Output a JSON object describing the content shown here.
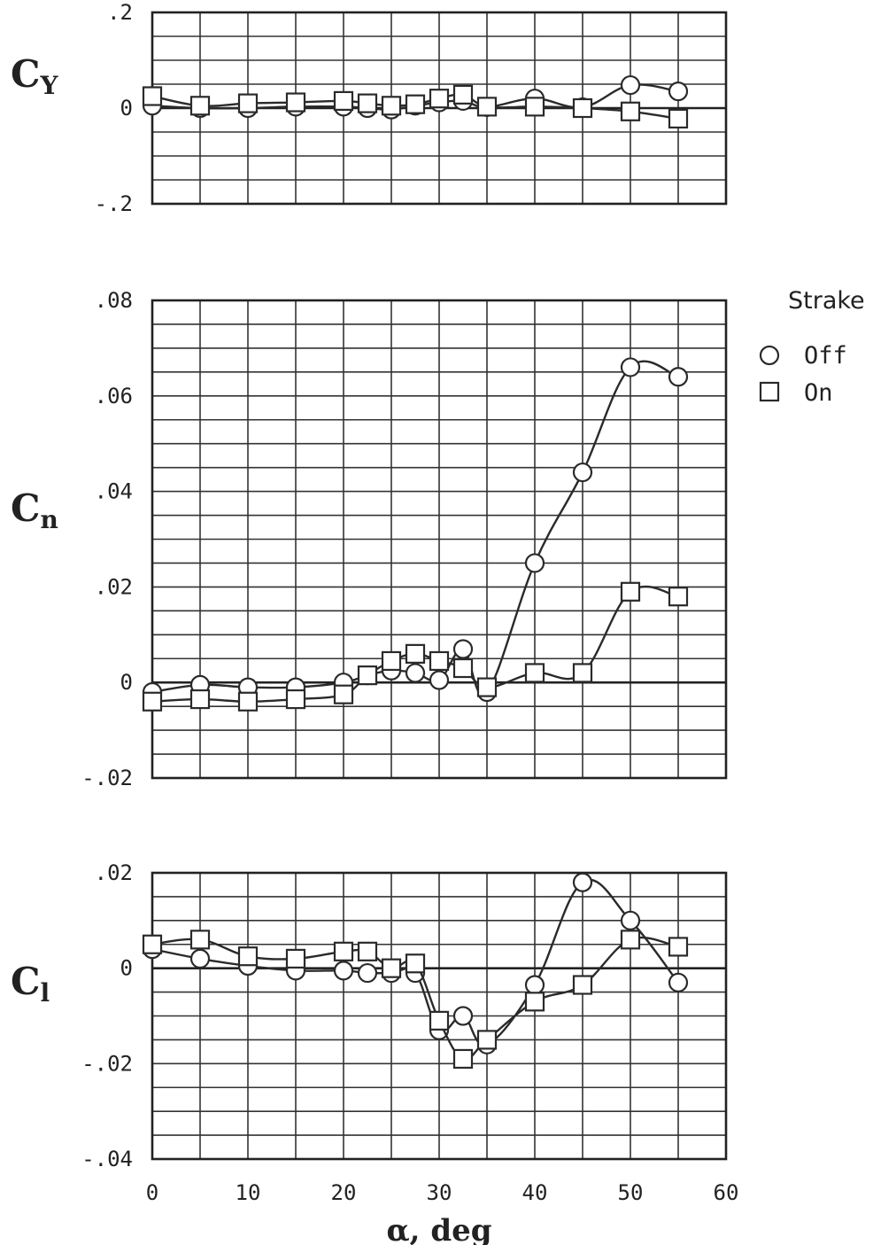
{
  "chart_data": [
    {
      "type": "line",
      "ylabel": {
        "main": "C",
        "sub": "Y"
      },
      "xlabel": "",
      "xlim": [
        0,
        60
      ],
      "xticks": [
        0,
        10,
        20,
        30,
        40,
        50,
        60
      ],
      "ylim": [
        -0.2,
        0.2
      ],
      "yticks": [
        -0.2,
        0,
        0.2
      ],
      "ytick_labels": [
        "-.2",
        "0",
        ".2"
      ],
      "grid": true,
      "series": [
        {
          "name": "Off",
          "marker": "circle",
          "x": [
            0,
            5,
            10,
            15,
            20,
            22.5,
            25,
            27.5,
            30,
            32.5,
            35,
            40,
            45,
            50,
            55
          ],
          "y": [
            0.005,
            0.0,
            0.0,
            0.003,
            0.003,
            0.0,
            -0.003,
            0.005,
            0.012,
            0.015,
            0.002,
            0.02,
            0.002,
            0.048,
            0.035
          ]
        },
        {
          "name": "On",
          "marker": "square",
          "x": [
            0,
            5,
            10,
            15,
            20,
            22.5,
            25,
            27.5,
            30,
            32.5,
            35,
            40,
            45,
            50,
            55
          ],
          "y": [
            0.025,
            0.005,
            0.01,
            0.012,
            0.015,
            0.01,
            0.005,
            0.008,
            0.02,
            0.028,
            0.003,
            0.003,
            0.0,
            -0.007,
            -0.022
          ]
        }
      ]
    },
    {
      "type": "line",
      "ylabel": {
        "main": "C",
        "sub": "n"
      },
      "xlabel": "",
      "xlim": [
        0,
        60
      ],
      "xticks": [
        0,
        10,
        20,
        30,
        40,
        50,
        60
      ],
      "ylim": [
        -0.02,
        0.08
      ],
      "yticks": [
        -0.02,
        0,
        0.02,
        0.04,
        0.06,
        0.08
      ],
      "ytick_labels": [
        "-.02",
        "0",
        ".02",
        ".04",
        ".06",
        ".08"
      ],
      "grid": true,
      "series": [
        {
          "name": "Off",
          "marker": "circle",
          "x": [
            0,
            5,
            10,
            15,
            20,
            22.5,
            25,
            27.5,
            30,
            32.5,
            35,
            40,
            45,
            50,
            55
          ],
          "y": [
            -0.002,
            -0.0005,
            -0.001,
            -0.001,
            0.0,
            0.0015,
            0.0025,
            0.002,
            0.0005,
            0.007,
            -0.002,
            0.025,
            0.044,
            0.066,
            0.064
          ]
        },
        {
          "name": "On",
          "marker": "square",
          "x": [
            0,
            5,
            10,
            15,
            20,
            22.5,
            25,
            27.5,
            30,
            32.5,
            35,
            40,
            45,
            50,
            55
          ],
          "y": [
            -0.004,
            -0.0035,
            -0.004,
            -0.0035,
            -0.0025,
            0.0015,
            0.0045,
            0.006,
            0.0045,
            0.003,
            -0.001,
            0.002,
            0.002,
            0.019,
            0.018
          ]
        }
      ]
    },
    {
      "type": "line",
      "ylabel": {
        "main": "C",
        "sub": "l"
      },
      "xlabel": {
        "main": "α",
        "rest": ", deg"
      },
      "xlim": [
        0,
        60
      ],
      "xticks": [
        0,
        10,
        20,
        30,
        40,
        50,
        60
      ],
      "xtick_labels": [
        "0",
        "10",
        "20",
        "30",
        "40",
        "50",
        "60"
      ],
      "ylim": [
        -0.04,
        0.02
      ],
      "yticks": [
        -0.04,
        -0.02,
        0,
        0.02
      ],
      "ytick_labels": [
        "-.04",
        "-.02",
        "0",
        ".02"
      ],
      "grid": true,
      "series": [
        {
          "name": "Off",
          "marker": "circle",
          "x": [
            0,
            5,
            10,
            15,
            20,
            22.5,
            25,
            27.5,
            30,
            32.5,
            35,
            40,
            45,
            50,
            55
          ],
          "y": [
            0.004,
            0.002,
            0.0005,
            -0.0005,
            -0.0005,
            -0.001,
            -0.001,
            -0.001,
            -0.013,
            -0.01,
            -0.016,
            -0.0035,
            0.018,
            0.01,
            -0.003
          ]
        },
        {
          "name": "On",
          "marker": "square",
          "x": [
            0,
            5,
            10,
            15,
            20,
            22.5,
            25,
            27.5,
            30,
            32.5,
            35,
            40,
            45,
            50,
            55
          ],
          "y": [
            0.005,
            0.006,
            0.0025,
            0.002,
            0.0035,
            0.0035,
            0.0,
            0.001,
            -0.011,
            -0.019,
            -0.015,
            -0.007,
            -0.0035,
            0.006,
            0.0045
          ]
        }
      ]
    }
  ],
  "legend": {
    "title": "Strake",
    "placement": "right",
    "entries": [
      {
        "label": "Off",
        "marker": "circle"
      },
      {
        "label": "On",
        "marker": "square"
      }
    ]
  }
}
